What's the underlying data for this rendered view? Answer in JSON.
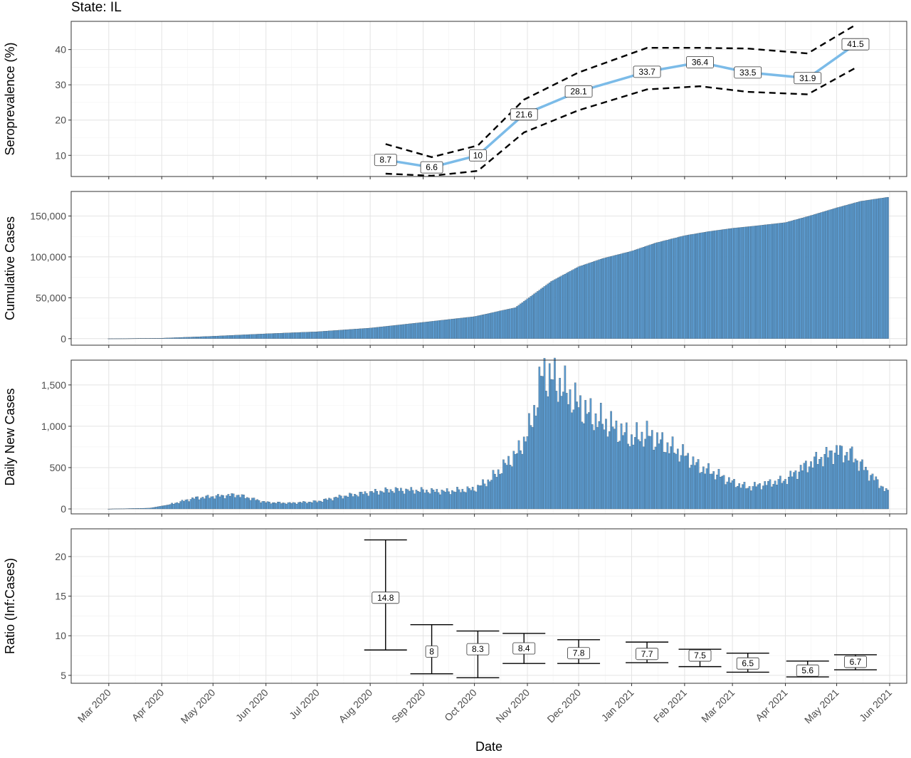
{
  "figure": {
    "title": "State: IL",
    "xlabel": "Date"
  },
  "chart_data": [
    {
      "type": "line",
      "ylabel": "Seroprevalence (%)",
      "ylim": [
        4,
        48
      ],
      "yticks": [
        10,
        20,
        30,
        40
      ],
      "grid": true,
      "series": [
        {
          "name": "",
          "style": "solid",
          "color": "#7bbbe8",
          "x": [
            "2020-08-10",
            "2020-09-06",
            "2020-10-03",
            "2020-10-30",
            "2020-12-01",
            "2021-01-10",
            "2021-02-10",
            "2021-03-10",
            "2021-04-14",
            "2021-05-12"
          ],
          "values": [
            8.7,
            6.6,
            10,
            21.6,
            28.1,
            33.7,
            36.4,
            33.5,
            31.9,
            41.5
          ]
        },
        {
          "name": "",
          "style": "dashed",
          "color": "#000000",
          "x": [
            "2020-08-10",
            "2020-09-06",
            "2020-10-03",
            "2020-10-30",
            "2020-12-01",
            "2021-01-10",
            "2021-02-10",
            "2021-03-10",
            "2021-04-14",
            "2021-05-12"
          ],
          "values": [
            13.2,
            9.5,
            12.8,
            25.8,
            33.5,
            40.5,
            40.5,
            40.3,
            38.9,
            47
          ]
        },
        {
          "name": "",
          "style": "dashed",
          "color": "#000000",
          "x": [
            "2020-08-10",
            "2020-09-06",
            "2020-10-03",
            "2020-10-30",
            "2020-12-01",
            "2021-01-10",
            "2021-02-10",
            "2021-03-10",
            "2021-04-14",
            "2021-05-12"
          ],
          "values": [
            4.8,
            4.2,
            5.6,
            16.5,
            22.8,
            28.7,
            29.6,
            28,
            27.3,
            34.8
          ]
        }
      ],
      "labels": [
        "8.7",
        "6.6",
        "10",
        "21.6",
        "28.1",
        "33.7",
        "36.4",
        "33.5",
        "31.9",
        "41.5"
      ]
    },
    {
      "type": "bar",
      "ylabel": "Cumulative Cases",
      "ylim": [
        -8000,
        180000
      ],
      "yticks": [
        0,
        50000,
        100000,
        150000
      ],
      "ytick_labels": [
        "0",
        "50,000",
        "100,000",
        "150,000"
      ],
      "color": "#5b9bd0",
      "grid": true,
      "x_start": "2020-03-01",
      "x_end": "2021-05-31",
      "series": [
        {
          "name": "",
          "x": [
            "2020-03-01",
            "2020-04-01",
            "2020-05-01",
            "2020-06-01",
            "2020-07-01",
            "2020-08-01",
            "2020-09-01",
            "2020-10-01",
            "2020-10-25",
            "2020-11-15",
            "2020-12-01",
            "2020-12-15",
            "2021-01-01",
            "2021-01-15",
            "2021-02-01",
            "2021-02-15",
            "2021-03-01",
            "2021-03-15",
            "2021-04-01",
            "2021-04-15",
            "2021-05-01",
            "2021-05-15",
            "2021-05-31"
          ],
          "values": [
            0,
            600,
            3000,
            6000,
            8500,
            13000,
            20000,
            27000,
            38000,
            70000,
            88000,
            98000,
            107000,
            117000,
            126000,
            131000,
            135000,
            138000,
            142000,
            150000,
            160000,
            168000,
            173000
          ]
        }
      ]
    },
    {
      "type": "bar",
      "ylabel": "Daily New Cases",
      "ylim": [
        -60,
        1800
      ],
      "yticks": [
        0,
        500,
        1000,
        1500
      ],
      "ytick_labels": [
        "0",
        "500",
        "1,000",
        "1,500"
      ],
      "color": "#5b9bd0",
      "grid": true,
      "x_start": "2020-03-01",
      "x_end": "2021-05-31",
      "series": [
        {
          "name": "",
          "x": [
            "2020-03-01",
            "2020-03-25",
            "2020-04-05",
            "2020-04-20",
            "2020-05-01",
            "2020-05-15",
            "2020-06-01",
            "2020-06-15",
            "2020-07-01",
            "2020-07-15",
            "2020-08-01",
            "2020-08-15",
            "2020-09-01",
            "2020-09-15",
            "2020-10-01",
            "2020-10-10",
            "2020-10-20",
            "2020-10-27",
            "2020-11-03",
            "2020-11-10",
            "2020-11-20",
            "2020-12-01",
            "2020-12-10",
            "2020-12-20",
            "2021-01-01",
            "2021-01-10",
            "2021-01-20",
            "2021-02-01",
            "2021-02-10",
            "2021-02-20",
            "2021-03-01",
            "2021-03-10",
            "2021-03-20",
            "2021-04-01",
            "2021-04-10",
            "2021-04-20",
            "2021-05-01",
            "2021-05-10",
            "2021-05-20",
            "2021-05-31"
          ],
          "values": [
            0,
            10,
            50,
            130,
            150,
            170,
            80,
            70,
            90,
            150,
            200,
            230,
            220,
            210,
            240,
            350,
            550,
            700,
            1000,
            1650,
            1500,
            1250,
            1100,
            1000,
            850,
            900,
            780,
            650,
            500,
            420,
            320,
            260,
            300,
            350,
            480,
            600,
            700,
            650,
            430,
            200
          ]
        }
      ]
    },
    {
      "type": "errorbar",
      "ylabel": "Ratio (Inf:Cases)",
      "ylim": [
        4,
        23.5
      ],
      "yticks": [
        5,
        10,
        15,
        20
      ],
      "grid": true,
      "points": [
        {
          "x": "2020-08-10",
          "value": 14.8,
          "lower": 8.2,
          "upper": 22.1,
          "label": "14.8"
        },
        {
          "x": "2020-09-06",
          "value": 8,
          "lower": 5.2,
          "upper": 11.4,
          "label": "8"
        },
        {
          "x": "2020-10-03",
          "value": 8.3,
          "lower": 4.7,
          "upper": 10.6,
          "label": "8.3"
        },
        {
          "x": "2020-10-30",
          "value": 8.4,
          "lower": 6.5,
          "upper": 10.3,
          "label": "8.4"
        },
        {
          "x": "2020-12-01",
          "value": 7.8,
          "lower": 6.5,
          "upper": 9.5,
          "label": "7.8"
        },
        {
          "x": "2021-01-10",
          "value": 7.7,
          "lower": 6.6,
          "upper": 9.2,
          "label": "7.7"
        },
        {
          "x": "2021-02-10",
          "value": 7.5,
          "lower": 6.1,
          "upper": 8.3,
          "label": "7.5"
        },
        {
          "x": "2021-03-10",
          "value": 6.5,
          "lower": 5.4,
          "upper": 7.8,
          "label": "6.5"
        },
        {
          "x": "2021-04-14",
          "value": 5.6,
          "lower": 4.8,
          "upper": 6.8,
          "label": "5.6"
        },
        {
          "x": "2021-05-12",
          "value": 6.7,
          "lower": 5.7,
          "upper": 7.6,
          "label": "6.7"
        }
      ]
    }
  ],
  "x_axis": {
    "domain": [
      "2020-02-08",
      "2021-06-11"
    ],
    "ticks": [
      {
        "date": "2020-03-01",
        "label": "Mar 2020"
      },
      {
        "date": "2020-04-01",
        "label": "Apr 2020"
      },
      {
        "date": "2020-05-01",
        "label": "May 2020"
      },
      {
        "date": "2020-06-01",
        "label": "Jun 2020"
      },
      {
        "date": "2020-07-01",
        "label": "Jul 2020"
      },
      {
        "date": "2020-08-01",
        "label": "Aug 2020"
      },
      {
        "date": "2020-09-01",
        "label": "Sep 2020"
      },
      {
        "date": "2020-10-01",
        "label": "Oct 2020"
      },
      {
        "date": "2020-11-01",
        "label": "Nov 2020"
      },
      {
        "date": "2020-12-01",
        "label": "Dec 2020"
      },
      {
        "date": "2021-01-01",
        "label": "Jan 2021"
      },
      {
        "date": "2021-02-01",
        "label": "Feb 2021"
      },
      {
        "date": "2021-03-01",
        "label": "Mar 2021"
      },
      {
        "date": "2021-04-01",
        "label": "Apr 2021"
      },
      {
        "date": "2021-05-01",
        "label": "May 2021"
      },
      {
        "date": "2021-06-01",
        "label": "Jun 2021"
      }
    ]
  }
}
